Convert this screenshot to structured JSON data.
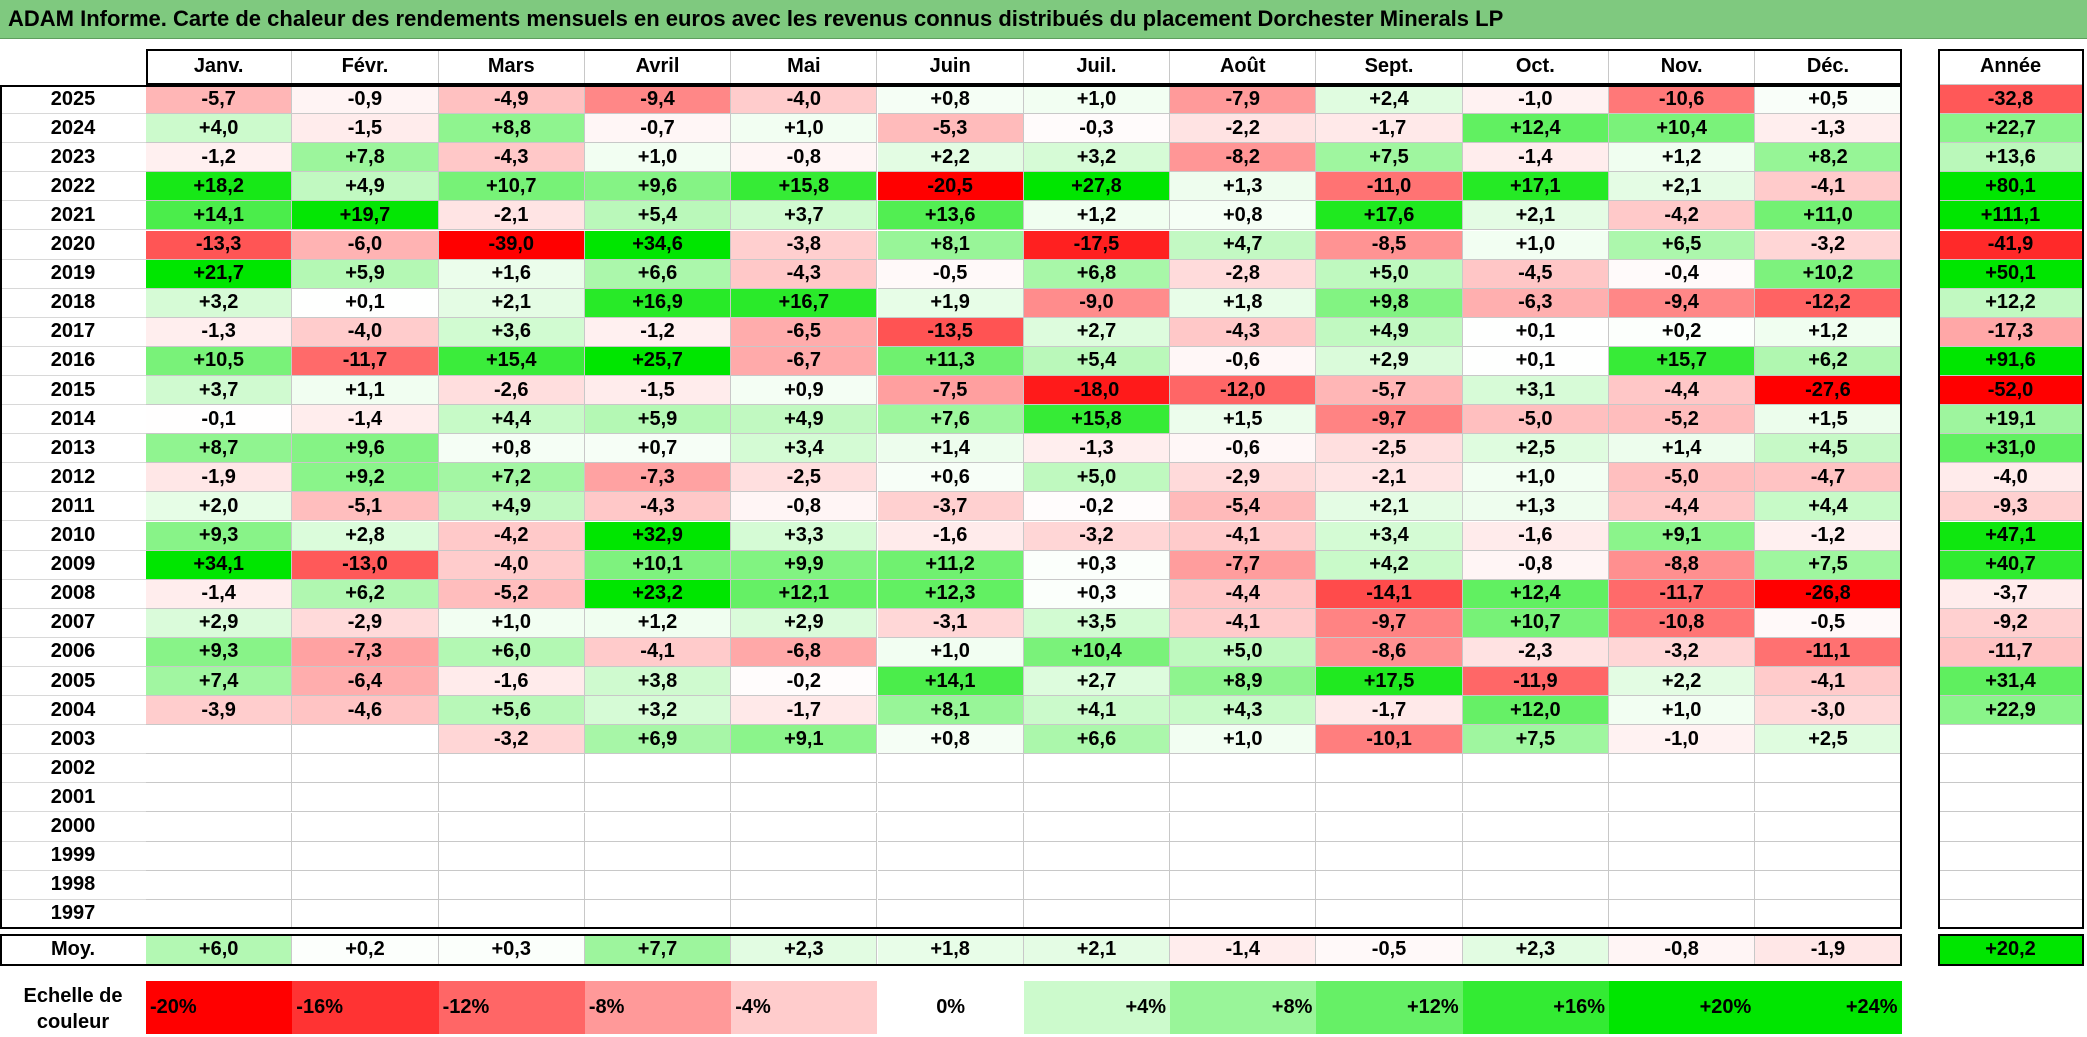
{
  "title": "ADAM Informe. Carte de chaleur des rendements mensuels en euros avec les revenus connus distribués du placement Dorchester Minerals LP",
  "chart_data": {
    "type": "heatmap",
    "months": [
      "Janv.",
      "Févr.",
      "Mars",
      "Avril",
      "Mai",
      "Juin",
      "Juil.",
      "Août",
      "Sept.",
      "Oct.",
      "Nov.",
      "Déc."
    ],
    "year_header": "Année",
    "rows": [
      {
        "year": "2025",
        "values": [
          "-5,7",
          "-0,9",
          "-4,9",
          "-9,4",
          "-4,0",
          "+0,8",
          "+1,0",
          "-7,9",
          "+2,4",
          "-1,0",
          "-10,6",
          "+0,5"
        ],
        "annual": "-32,8"
      },
      {
        "year": "2024",
        "values": [
          "+4,0",
          "-1,5",
          "+8,8",
          "-0,7",
          "+1,0",
          "-5,3",
          "-0,3",
          "-2,2",
          "-1,7",
          "+12,4",
          "+10,4",
          "-1,3"
        ],
        "annual": "+22,7"
      },
      {
        "year": "2023",
        "values": [
          "-1,2",
          "+7,8",
          "-4,3",
          "+1,0",
          "-0,8",
          "+2,2",
          "+3,2",
          "-8,2",
          "+7,5",
          "-1,4",
          "+1,2",
          "+8,2"
        ],
        "annual": "+13,6"
      },
      {
        "year": "2022",
        "values": [
          "+18,2",
          "+4,9",
          "+10,7",
          "+9,6",
          "+15,8",
          "-20,5",
          "+27,8",
          "+1,3",
          "-11,0",
          "+17,1",
          "+2,1",
          "-4,1"
        ],
        "annual": "+80,1"
      },
      {
        "year": "2021",
        "values": [
          "+14,1",
          "+19,7",
          "-2,1",
          "+5,4",
          "+3,7",
          "+13,6",
          "+1,2",
          "+0,8",
          "+17,6",
          "+2,1",
          "-4,2",
          "+11,0"
        ],
        "annual": "+111,1"
      },
      {
        "year": "2020",
        "values": [
          "-13,3",
          "-6,0",
          "-39,0",
          "+34,6",
          "-3,8",
          "+8,1",
          "-17,5",
          "+4,7",
          "-8,5",
          "+1,0",
          "+6,5",
          "-3,2"
        ],
        "annual": "-41,9"
      },
      {
        "year": "2019",
        "values": [
          "+21,7",
          "+5,9",
          "+1,6",
          "+6,6",
          "-4,3",
          "-0,5",
          "+6,8",
          "-2,8",
          "+5,0",
          "-4,5",
          "-0,4",
          "+10,2"
        ],
        "annual": "+50,1"
      },
      {
        "year": "2018",
        "values": [
          "+3,2",
          "+0,1",
          "+2,1",
          "+16,9",
          "+16,7",
          "+1,9",
          "-9,0",
          "+1,8",
          "+9,8",
          "-6,3",
          "-9,4",
          "-12,2"
        ],
        "annual": "+12,2"
      },
      {
        "year": "2017",
        "values": [
          "-1,3",
          "-4,0",
          "+3,6",
          "-1,2",
          "-6,5",
          "-13,5",
          "+2,7",
          "-4,3",
          "+4,9",
          "+0,1",
          "+0,2",
          "+1,2"
        ],
        "annual": "-17,3"
      },
      {
        "year": "2016",
        "values": [
          "+10,5",
          "-11,7",
          "+15,4",
          "+25,7",
          "-6,7",
          "+11,3",
          "+5,4",
          "-0,6",
          "+2,9",
          "+0,1",
          "+15,7",
          "+6,2"
        ],
        "annual": "+91,6"
      },
      {
        "year": "2015",
        "values": [
          "+3,7",
          "+1,1",
          "-2,6",
          "-1,5",
          "+0,9",
          "-7,5",
          "-18,0",
          "-12,0",
          "-5,7",
          "+3,1",
          "-4,4",
          "-27,6"
        ],
        "annual": "-52,0"
      },
      {
        "year": "2014",
        "values": [
          "-0,1",
          "-1,4",
          "+4,4",
          "+5,9",
          "+4,9",
          "+7,6",
          "+15,8",
          "+1,5",
          "-9,7",
          "-5,0",
          "-5,2",
          "+1,5"
        ],
        "annual": "+19,1"
      },
      {
        "year": "2013",
        "values": [
          "+8,7",
          "+9,6",
          "+0,8",
          "+0,7",
          "+3,4",
          "+1,4",
          "-1,3",
          "-0,6",
          "-2,5",
          "+2,5",
          "+1,4",
          "+4,5"
        ],
        "annual": "+31,0"
      },
      {
        "year": "2012",
        "values": [
          "-1,9",
          "+9,2",
          "+7,2",
          "-7,3",
          "-2,5",
          "+0,6",
          "+5,0",
          "-2,9",
          "-2,1",
          "+1,0",
          "-5,0",
          "-4,7"
        ],
        "annual": "-4,0"
      },
      {
        "year": "2011",
        "values": [
          "+2,0",
          "-5,1",
          "+4,9",
          "-4,3",
          "-0,8",
          "-3,7",
          "-0,2",
          "-5,4",
          "+2,1",
          "+1,3",
          "-4,4",
          "+4,4"
        ],
        "annual": "-9,3"
      },
      {
        "year": "2010",
        "values": [
          "+9,3",
          "+2,8",
          "-4,2",
          "+32,9",
          "+3,3",
          "-1,6",
          "-3,2",
          "-4,1",
          "+3,4",
          "-1,6",
          "+9,1",
          "-1,2"
        ],
        "annual": "+47,1"
      },
      {
        "year": "2009",
        "values": [
          "+34,1",
          "-13,0",
          "-4,0",
          "+10,1",
          "+9,9",
          "+11,2",
          "+0,3",
          "-7,7",
          "+4,2",
          "-0,8",
          "-8,8",
          "+7,5"
        ],
        "annual": "+40,7"
      },
      {
        "year": "2008",
        "values": [
          "-1,4",
          "+6,2",
          "-5,2",
          "+23,2",
          "+12,1",
          "+12,3",
          "+0,3",
          "-4,4",
          "-14,1",
          "+12,4",
          "-11,7",
          "-26,8"
        ],
        "annual": "-3,7"
      },
      {
        "year": "2007",
        "values": [
          "+2,9",
          "-2,9",
          "+1,0",
          "+1,2",
          "+2,9",
          "-3,1",
          "+3,5",
          "-4,1",
          "-9,7",
          "+10,7",
          "-10,8",
          "-0,5"
        ],
        "annual": "-9,2"
      },
      {
        "year": "2006",
        "values": [
          "+9,3",
          "-7,3",
          "+6,0",
          "-4,1",
          "-6,8",
          "+1,0",
          "+10,4",
          "+5,0",
          "-8,6",
          "-2,3",
          "-3,2",
          "-11,1"
        ],
        "annual": "-11,7"
      },
      {
        "year": "2005",
        "values": [
          "+7,4",
          "-6,4",
          "-1,6",
          "+3,8",
          "-0,2",
          "+14,1",
          "+2,7",
          "+8,9",
          "+17,5",
          "-11,9",
          "+2,2",
          "-4,1"
        ],
        "annual": "+31,4"
      },
      {
        "year": "2004",
        "values": [
          "-3,9",
          "-4,6",
          "+5,6",
          "+3,2",
          "-1,7",
          "+8,1",
          "+4,1",
          "+4,3",
          "-1,7",
          "+12,0",
          "+1,0",
          "-3,0"
        ],
        "annual": "+22,9"
      },
      {
        "year": "2003",
        "values": [
          "",
          "",
          "-3,2",
          "+6,9",
          "+9,1",
          "+0,8",
          "+6,6",
          "+1,0",
          "-10,1",
          "+7,5",
          "-1,0",
          "+2,5"
        ],
        "annual": ""
      },
      {
        "year": "2002",
        "values": [
          "",
          "",
          "",
          "",
          "",
          "",
          "",
          "",
          "",
          "",
          "",
          ""
        ],
        "annual": ""
      },
      {
        "year": "2001",
        "values": [
          "",
          "",
          "",
          "",
          "",
          "",
          "",
          "",
          "",
          "",
          "",
          ""
        ],
        "annual": ""
      },
      {
        "year": "2000",
        "values": [
          "",
          "",
          "",
          "",
          "",
          "",
          "",
          "",
          "",
          "",
          "",
          ""
        ],
        "annual": ""
      },
      {
        "year": "1999",
        "values": [
          "",
          "",
          "",
          "",
          "",
          "",
          "",
          "",
          "",
          "",
          "",
          ""
        ],
        "annual": ""
      },
      {
        "year": "1998",
        "values": [
          "",
          "",
          "",
          "",
          "",
          "",
          "",
          "",
          "",
          "",
          "",
          ""
        ],
        "annual": ""
      },
      {
        "year": "1997",
        "values": [
          "",
          "",
          "",
          "",
          "",
          "",
          "",
          "",
          "",
          "",
          "",
          ""
        ],
        "annual": ""
      }
    ],
    "average": {
      "label": "Moy.",
      "values": [
        "+6,0",
        "+0,2",
        "+0,3",
        "+7,7",
        "+2,3",
        "+1,8",
        "+2,1",
        "-1,4",
        "-0,5",
        "+2,3",
        "-0,8",
        "-1,9"
      ],
      "annual": "+20,2"
    },
    "color_scale": {
      "label": "Echelle de couleur",
      "stops": [
        {
          "label": "-20%",
          "value": -20
        },
        {
          "label": "-16%",
          "value": -16
        },
        {
          "label": "-12%",
          "value": -12
        },
        {
          "label": "-8%",
          "value": -8
        },
        {
          "label": "-4%",
          "value": -4
        },
        {
          "label": "0%",
          "value": 0
        },
        {
          "label": "+4%",
          "value": 4
        },
        {
          "label": "+8%",
          "value": 8
        },
        {
          "label": "+12%",
          "value": 12
        },
        {
          "label": "+16%",
          "value": 16
        },
        {
          "label": "+20%",
          "value": 20
        },
        {
          "label": "+24%",
          "value": 24
        }
      ]
    }
  }
}
